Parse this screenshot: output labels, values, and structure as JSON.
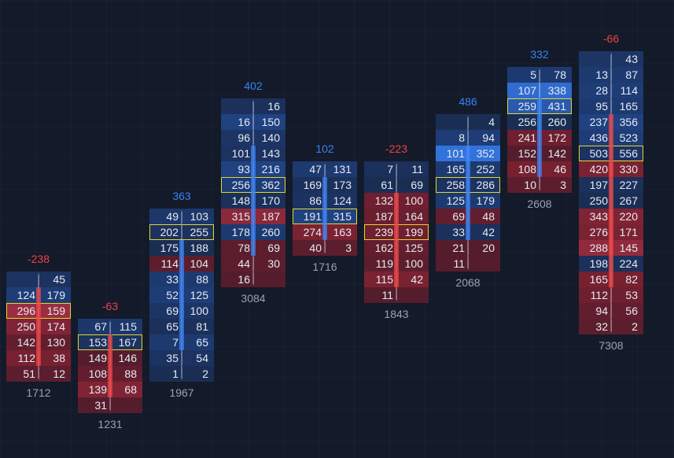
{
  "colors": {
    "background": "#131a29",
    "positive": "#3b82f6",
    "negative": "#ef4444",
    "poc": "#e2d631",
    "text": "#e6eaf2",
    "volume_text": "#9aa3b2"
  },
  "chart_data": {
    "type": "footprint",
    "legend": "none",
    "grid": true,
    "bars": [
      {
        "delta": "-238",
        "volume": "1712",
        "direction": "down",
        "rows": [
          {
            "bid": "",
            "ask": "45",
            "tint": "blue",
            "level": 0.3
          },
          {
            "bid": "124",
            "ask": "179",
            "tint": "blue",
            "level": 0.5
          },
          {
            "bid": "296",
            "ask": "159",
            "tint": "red",
            "level": 0.85,
            "poc": true
          },
          {
            "bid": "250",
            "ask": "174",
            "tint": "red",
            "level": 0.6
          },
          {
            "bid": "142",
            "ask": "130",
            "tint": "red",
            "level": 0.35
          },
          {
            "bid": "112",
            "ask": "38",
            "tint": "red",
            "level": 0.5
          },
          {
            "bid": "51",
            "ask": "12",
            "tint": "red",
            "level": 0.3
          }
        ]
      },
      {
        "delta": "-63",
        "volume": "1231",
        "direction": "down",
        "rows": [
          {
            "bid": "67",
            "ask": "115",
            "tint": "blue",
            "level": 0.4
          },
          {
            "bid": "153",
            "ask": "167",
            "tint": "blue",
            "level": 0.3,
            "poc": true
          },
          {
            "bid": "149",
            "ask": "146",
            "tint": "red",
            "level": 0.25
          },
          {
            "bid": "108",
            "ask": "88",
            "tint": "red",
            "level": 0.35
          },
          {
            "bid": "139",
            "ask": "68",
            "tint": "red",
            "level": 0.6
          },
          {
            "bid": "31",
            "ask": "",
            "tint": "red",
            "level": 0.25
          }
        ]
      },
      {
        "delta": "363",
        "volume": "1967",
        "direction": "up",
        "rows": [
          {
            "bid": "49",
            "ask": "103",
            "tint": "blue",
            "level": 0.4
          },
          {
            "bid": "202",
            "ask": "255",
            "tint": "blue",
            "level": 0.3,
            "poc": true
          },
          {
            "bid": "175",
            "ask": "188",
            "tint": "blue",
            "level": 0.2
          },
          {
            "bid": "114",
            "ask": "104",
            "tint": "red",
            "level": 0.3
          },
          {
            "bid": "33",
            "ask": "88",
            "tint": "blue",
            "level": 0.45
          },
          {
            "bid": "52",
            "ask": "125",
            "tint": "blue",
            "level": 0.5
          },
          {
            "bid": "69",
            "ask": "100",
            "tint": "blue",
            "level": 0.35
          },
          {
            "bid": "65",
            "ask": "81",
            "tint": "blue",
            "level": 0.25
          },
          {
            "bid": "7",
            "ask": "65",
            "tint": "blue",
            "level": 0.45
          },
          {
            "bid": "35",
            "ask": "54",
            "tint": "blue",
            "level": 0.3
          },
          {
            "bid": "1",
            "ask": "2",
            "tint": "blue",
            "level": 0.2
          }
        ]
      },
      {
        "delta": "402",
        "volume": "3084",
        "direction": "up",
        "rows": [
          {
            "bid": "",
            "ask": "16",
            "tint": "blue",
            "level": 0.25
          },
          {
            "bid": "16",
            "ask": "150",
            "tint": "blue",
            "level": 0.55
          },
          {
            "bid": "96",
            "ask": "140",
            "tint": "blue",
            "level": 0.35
          },
          {
            "bid": "101",
            "ask": "143",
            "tint": "blue",
            "level": 0.3
          },
          {
            "bid": "93",
            "ask": "216",
            "tint": "blue",
            "level": 0.55
          },
          {
            "bid": "256",
            "ask": "362",
            "tint": "blue",
            "level": 0.5,
            "poc": true
          },
          {
            "bid": "148",
            "ask": "170",
            "tint": "blue",
            "level": 0.25
          },
          {
            "bid": "315",
            "ask": "187",
            "tint": "red",
            "level": 0.7
          },
          {
            "bid": "178",
            "ask": "260",
            "tint": "blue",
            "level": 0.45
          },
          {
            "bid": "78",
            "ask": "69",
            "tint": "red",
            "level": 0.3
          },
          {
            "bid": "44",
            "ask": "30",
            "tint": "red",
            "level": 0.3
          },
          {
            "bid": "16",
            "ask": "",
            "tint": "red",
            "level": 0.25
          }
        ]
      },
      {
        "delta": "102",
        "volume": "1716",
        "direction": "up",
        "rows": [
          {
            "bid": "47",
            "ask": "131",
            "tint": "blue",
            "level": 0.45
          },
          {
            "bid": "169",
            "ask": "173",
            "tint": "blue",
            "level": 0.25
          },
          {
            "bid": "86",
            "ask": "124",
            "tint": "blue",
            "level": 0.3
          },
          {
            "bid": "191",
            "ask": "315",
            "tint": "blue",
            "level": 0.55,
            "poc": true
          },
          {
            "bid": "274",
            "ask": "163",
            "tint": "red",
            "level": 0.55
          },
          {
            "bid": "40",
            "ask": "3",
            "tint": "red",
            "level": 0.3
          }
        ]
      },
      {
        "delta": "-223",
        "volume": "1843",
        "direction": "down",
        "rows": [
          {
            "bid": "7",
            "ask": "11",
            "tint": "blue",
            "level": 0.25
          },
          {
            "bid": "61",
            "ask": "69",
            "tint": "blue",
            "level": 0.2
          },
          {
            "bid": "132",
            "ask": "100",
            "tint": "red",
            "level": 0.45
          },
          {
            "bid": "187",
            "ask": "164",
            "tint": "red",
            "level": 0.4
          },
          {
            "bid": "239",
            "ask": "199",
            "tint": "red",
            "level": 0.45,
            "poc": true
          },
          {
            "bid": "162",
            "ask": "125",
            "tint": "red",
            "level": 0.35
          },
          {
            "bid": "119",
            "ask": "100",
            "tint": "red",
            "level": 0.3
          },
          {
            "bid": "115",
            "ask": "42",
            "tint": "red",
            "level": 0.55
          },
          {
            "bid": "11",
            "ask": "",
            "tint": "red",
            "level": 0.25
          }
        ]
      },
      {
        "delta": "486",
        "volume": "2068",
        "direction": "up",
        "rows": [
          {
            "bid": "",
            "ask": "4",
            "tint": "blue",
            "level": 0.2
          },
          {
            "bid": "8",
            "ask": "94",
            "tint": "blue",
            "level": 0.5
          },
          {
            "bid": "101",
            "ask": "352",
            "tint": "blue",
            "level": 0.95
          },
          {
            "bid": "165",
            "ask": "252",
            "tint": "blue",
            "level": 0.45
          },
          {
            "bid": "258",
            "ask": "286",
            "tint": "blue",
            "level": 0.3,
            "poc": true
          },
          {
            "bid": "125",
            "ask": "179",
            "tint": "blue",
            "level": 0.45
          },
          {
            "bid": "69",
            "ask": "48",
            "tint": "red",
            "level": 0.35
          },
          {
            "bid": "33",
            "ask": "42",
            "tint": "blue",
            "level": 0.25
          },
          {
            "bid": "21",
            "ask": "20",
            "tint": "red",
            "level": 0.25
          },
          {
            "bid": "11",
            "ask": "",
            "tint": "red",
            "level": 0.25
          }
        ]
      },
      {
        "delta": "332",
        "volume": "2608",
        "direction": "up",
        "rows": [
          {
            "bid": "5",
            "ask": "78",
            "tint": "blue",
            "level": 0.45
          },
          {
            "bid": "107",
            "ask": "338",
            "tint": "blue",
            "level": 0.9
          },
          {
            "bid": "259",
            "ask": "431",
            "tint": "blue",
            "level": 0.75,
            "poc": true
          },
          {
            "bid": "256",
            "ask": "260",
            "tint": "blue",
            "level": 0.2
          },
          {
            "bid": "241",
            "ask": "172",
            "tint": "red",
            "level": 0.45
          },
          {
            "bid": "152",
            "ask": "142",
            "tint": "red",
            "level": 0.25
          },
          {
            "bid": "108",
            "ask": "46",
            "tint": "red",
            "level": 0.5
          },
          {
            "bid": "10",
            "ask": "3",
            "tint": "red",
            "level": 0.3
          }
        ]
      },
      {
        "delta": "-66",
        "volume": "7308",
        "direction": "down",
        "rows": [
          {
            "bid": "",
            "ask": "43",
            "tint": "blue",
            "level": 0.35
          },
          {
            "bid": "13",
            "ask": "87",
            "tint": "blue",
            "level": 0.45
          },
          {
            "bid": "28",
            "ask": "114",
            "tint": "blue",
            "level": 0.5
          },
          {
            "bid": "95",
            "ask": "165",
            "tint": "blue",
            "level": 0.45
          },
          {
            "bid": "237",
            "ask": "356",
            "tint": "blue",
            "level": 0.55
          },
          {
            "bid": "436",
            "ask": "523",
            "tint": "blue",
            "level": 0.5
          },
          {
            "bid": "503",
            "ask": "556",
            "tint": "blue",
            "level": 0.3,
            "poc": true
          },
          {
            "bid": "420",
            "ask": "330",
            "tint": "red",
            "level": 0.55
          },
          {
            "bid": "197",
            "ask": "227",
            "tint": "blue",
            "level": 0.25
          },
          {
            "bid": "250",
            "ask": "267",
            "tint": "blue",
            "level": 0.2
          },
          {
            "bid": "343",
            "ask": "220",
            "tint": "red",
            "level": 0.6
          },
          {
            "bid": "276",
            "ask": "171",
            "tint": "red",
            "level": 0.55
          },
          {
            "bid": "288",
            "ask": "145",
            "tint": "red",
            "level": 0.75
          },
          {
            "bid": "198",
            "ask": "224",
            "tint": "blue",
            "level": 0.25
          },
          {
            "bid": "165",
            "ask": "82",
            "tint": "red",
            "level": 0.5
          },
          {
            "bid": "112",
            "ask": "53",
            "tint": "red",
            "level": 0.45
          },
          {
            "bid": "94",
            "ask": "56",
            "tint": "red",
            "level": 0.35
          },
          {
            "bid": "32",
            "ask": "2",
            "tint": "red",
            "level": 0.3
          }
        ]
      }
    ]
  }
}
